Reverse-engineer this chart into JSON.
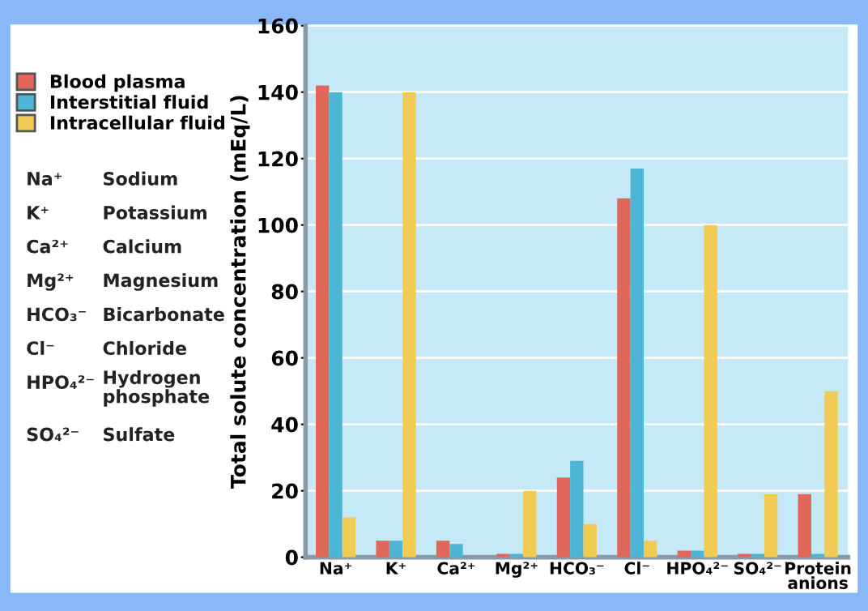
{
  "chart_data": {
    "type": "bar",
    "ylabel": "Total solute concentration (mEq/L)",
    "categories": [
      "Na⁺",
      "K⁺",
      "Ca²⁺",
      "Mg²⁺",
      "HCO₃⁻",
      "Cl⁻",
      "HPO₄²⁻",
      "SO₄²⁻",
      "Protein\nanions"
    ],
    "series": [
      {
        "name": "Blood plasma",
        "color": "#e0675a",
        "values": [
          142,
          5,
          5,
          1,
          24,
          108,
          2,
          1,
          19
        ]
      },
      {
        "name": "Interstitial fluid",
        "color": "#4db6d6",
        "values": [
          140,
          5,
          4,
          1,
          29,
          117,
          2,
          1,
          1
        ]
      },
      {
        "name": "Intracellular fluid",
        "color": "#f2cb55",
        "values": [
          12,
          140,
          0,
          20,
          10,
          5,
          100,
          19,
          50
        ]
      }
    ],
    "ylim": [
      0,
      160
    ],
    "yticks": [
      0,
      20,
      40,
      60,
      80,
      100,
      120,
      140,
      160
    ],
    "grid": "y",
    "legend": "left",
    "annotations": [
      "Na⁺",
      "Sodium",
      "K⁺",
      "Potassium",
      "Ca²⁺",
      "Calcium",
      "Mg²⁺",
      "Magnesium",
      "HCO₃⁻",
      "Bicarbonate",
      "Cl⁻",
      "Chloride",
      "HPO₄²⁻",
      "Hydrogen\nphosphate",
      "SO₄²⁻",
      "Sulfate"
    ]
  }
}
